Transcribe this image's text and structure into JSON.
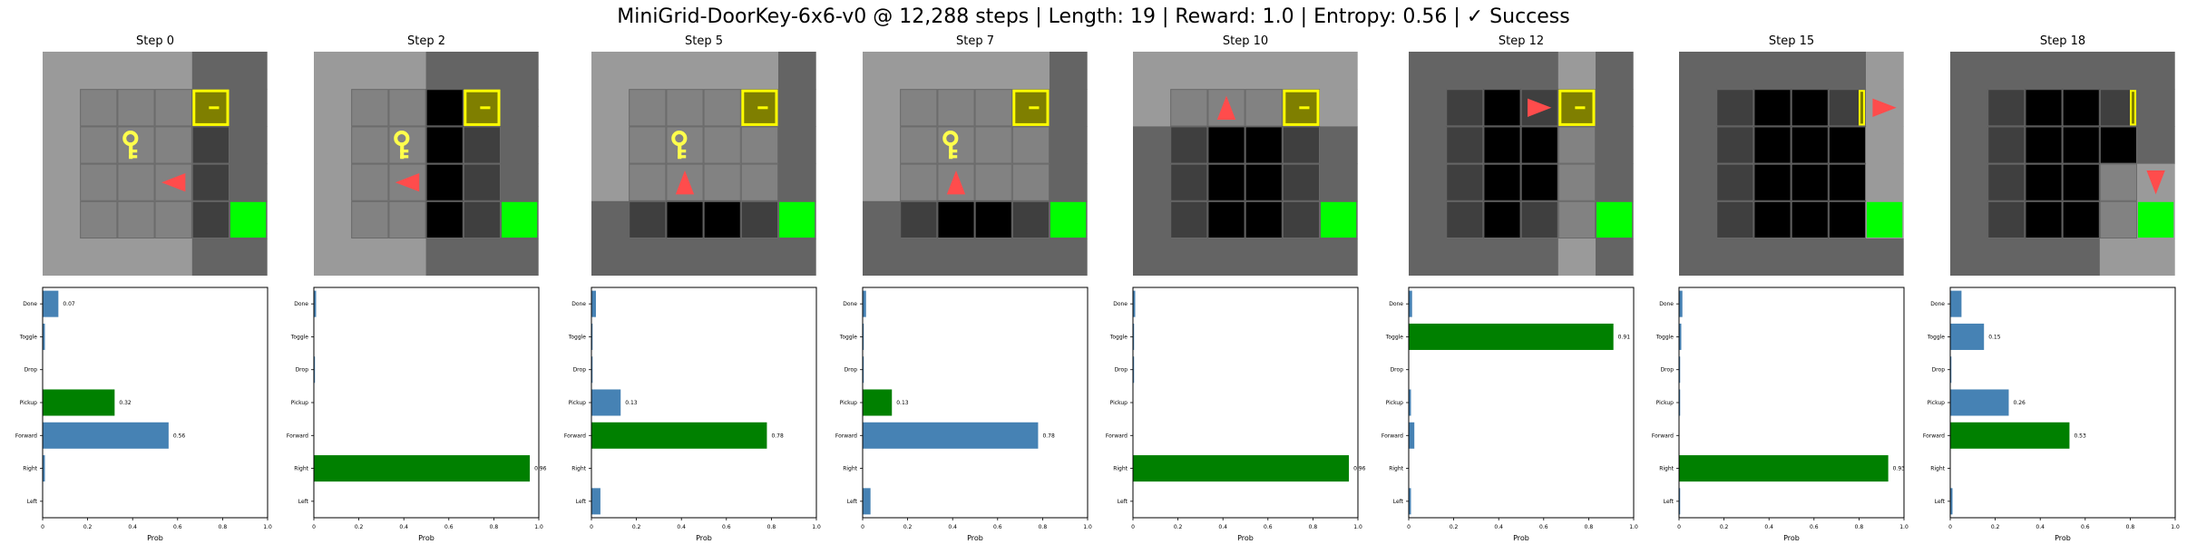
{
  "title": "MiniGrid-DoorKey-6x6-v0 @ 12,288 steps | Length: 19 | Reward: 1.0 | Entropy: 0.56 | ✓ Success",
  "colors": {
    "bar_default": "#4682b4",
    "bar_chosen": "#008000",
    "goal": "#00ff00",
    "door": "#7f7f00",
    "key": "#ffff4c",
    "agent": "#ff4c4c",
    "wall": "#646464",
    "floor": "#3f3f3f",
    "unseen": "#000000"
  },
  "icons": {
    "agent": "triangle-agent-icon",
    "key": "key-icon",
    "door": "locked-door-icon",
    "goal": "goal-square-icon"
  },
  "chart_data": [
    {
      "type": "bar",
      "orientation": "horizontal",
      "title": "Step 0",
      "categories": [
        "Left",
        "Right",
        "Forward",
        "Pickup",
        "Drop",
        "Toggle",
        "Done"
      ],
      "values": [
        0.0,
        0.01,
        0.56,
        0.32,
        0.0,
        0.01,
        0.07
      ],
      "value_labels": {
        "Forward": "0.56",
        "Pickup": "0.32",
        "Done": "0.07"
      },
      "chosen": "Pickup",
      "xlabel": "Prob",
      "xlim": [
        0,
        1
      ],
      "xticks": [
        "0",
        "0.2",
        "0.4",
        "0.6",
        "0.8",
        "1.0"
      ]
    },
    {
      "type": "bar",
      "orientation": "horizontal",
      "title": "Step 2",
      "categories": [
        "Left",
        "Right",
        "Forward",
        "Pickup",
        "Drop",
        "Toggle",
        "Done"
      ],
      "values": [
        0.0,
        0.96,
        0.0,
        0.0,
        0.005,
        0.0,
        0.01
      ],
      "value_labels": {
        "Right": "0.96"
      },
      "chosen": "Right",
      "xlabel": "Prob",
      "xlim": [
        0,
        1
      ],
      "xticks": [
        "0",
        "0.2",
        "0.4",
        "0.6",
        "0.8",
        "1.0"
      ]
    },
    {
      "type": "bar",
      "orientation": "horizontal",
      "title": "Step 5",
      "categories": [
        "Left",
        "Right",
        "Forward",
        "Pickup",
        "Drop",
        "Toggle",
        "Done"
      ],
      "values": [
        0.04,
        0.0,
        0.78,
        0.13,
        0.005,
        0.005,
        0.02
      ],
      "value_labels": {
        "Forward": "0.78",
        "Pickup": "0.13"
      },
      "chosen": "Forward",
      "xlabel": "Prob",
      "xlim": [
        0,
        1
      ],
      "xticks": [
        "0",
        "0.2",
        "0.4",
        "0.6",
        "0.8",
        "1.0"
      ]
    },
    {
      "type": "bar",
      "orientation": "horizontal",
      "title": "Step 7",
      "categories": [
        "Left",
        "Right",
        "Forward",
        "Pickup",
        "Drop",
        "Toggle",
        "Done"
      ],
      "values": [
        0.035,
        0.0,
        0.78,
        0.13,
        0.005,
        0.005,
        0.015
      ],
      "value_labels": {
        "Forward": "0.78",
        "Pickup": "0.13"
      },
      "chosen": "Pickup",
      "xlabel": "Prob",
      "xlim": [
        0,
        1
      ],
      "xticks": [
        "0",
        "0.2",
        "0.4",
        "0.6",
        "0.8",
        "1.0"
      ]
    },
    {
      "type": "bar",
      "orientation": "horizontal",
      "title": "Step 10",
      "categories": [
        "Left",
        "Right",
        "Forward",
        "Pickup",
        "Drop",
        "Toggle",
        "Done"
      ],
      "values": [
        0.0,
        0.96,
        0.0,
        0.0,
        0.005,
        0.005,
        0.01
      ],
      "value_labels": {
        "Right": "0.96"
      },
      "chosen": "Right",
      "xlabel": "Prob",
      "xlim": [
        0,
        1
      ],
      "xticks": [
        "0",
        "0.2",
        "0.4",
        "0.6",
        "0.8",
        "1.0"
      ]
    },
    {
      "type": "bar",
      "orientation": "horizontal",
      "title": "Step 12",
      "categories": [
        "Left",
        "Right",
        "Forward",
        "Pickup",
        "Drop",
        "Toggle",
        "Done"
      ],
      "values": [
        0.01,
        0.0,
        0.025,
        0.01,
        0.0,
        0.91,
        0.015
      ],
      "value_labels": {
        "Toggle": "0.91"
      },
      "chosen": "Toggle",
      "xlabel": "Prob",
      "xlim": [
        0,
        1
      ],
      "xticks": [
        "0",
        "0.2",
        "0.4",
        "0.6",
        "0.8",
        "1.0"
      ]
    },
    {
      "type": "bar",
      "orientation": "horizontal",
      "title": "Step 15",
      "categories": [
        "Left",
        "Right",
        "Forward",
        "Pickup",
        "Drop",
        "Toggle",
        "Done"
      ],
      "values": [
        0.005,
        0.93,
        0.0,
        0.005,
        0.005,
        0.01,
        0.015
      ],
      "value_labels": {
        "Right": "0.93"
      },
      "chosen": "Right",
      "xlabel": "Prob",
      "xlim": [
        0,
        1
      ],
      "xticks": [
        "0",
        "0.2",
        "0.4",
        "0.6",
        "0.8",
        "1.0"
      ]
    },
    {
      "type": "bar",
      "orientation": "horizontal",
      "title": "Step 18",
      "categories": [
        "Left",
        "Right",
        "Forward",
        "Pickup",
        "Drop",
        "Toggle",
        "Done"
      ],
      "values": [
        0.01,
        0.0,
        0.53,
        0.26,
        0.005,
        0.15,
        0.05
      ],
      "value_labels": {
        "Forward": "0.53",
        "Pickup": "0.26",
        "Toggle": "0.15"
      },
      "chosen": "Forward",
      "xlabel": "Prob",
      "xlim": [
        0,
        1
      ],
      "xticks": [
        "0",
        "0.2",
        "0.4",
        "0.6",
        "0.8",
        "1.0"
      ]
    }
  ],
  "grids": [
    {
      "agent": {
        "c": 3,
        "r": 3,
        "dir": "left"
      },
      "key": {
        "c": 2,
        "r": 2
      },
      "door": {
        "c": 4,
        "r": 1,
        "state": "locked"
      },
      "goal": {
        "c": 5,
        "r": 4
      },
      "unseen": [
        [
          5,
          1
        ],
        [
          5,
          2
        ],
        [
          5,
          3
        ]
      ],
      "light": "none",
      "vis": [
        [
          0,
          0
        ],
        [
          0,
          1
        ],
        [
          0,
          2
        ],
        [
          0,
          3
        ],
        [
          0,
          4
        ],
        [
          0,
          5
        ],
        [
          1,
          0
        ],
        [
          1,
          1
        ],
        [
          1,
          2
        ],
        [
          1,
          3
        ],
        [
          1,
          4
        ],
        [
          1,
          5
        ],
        [
          2,
          0
        ],
        [
          2,
          1
        ],
        [
          2,
          2
        ],
        [
          2,
          3
        ],
        [
          2,
          4
        ],
        [
          2,
          5
        ],
        [
          3,
          0
        ],
        [
          3,
          1
        ],
        [
          3,
          2
        ],
        [
          3,
          3
        ],
        [
          3,
          4
        ],
        [
          3,
          5
        ]
      ]
    },
    {
      "agent": {
        "c": 2,
        "r": 3,
        "dir": "left"
      },
      "key": {
        "c": 2,
        "r": 2
      },
      "door": {
        "c": 4,
        "r": 1,
        "state": "locked"
      },
      "goal": {
        "c": 5,
        "r": 4
      },
      "unseen": [
        [
          3,
          1
        ],
        [
          3,
          2
        ],
        [
          3,
          3
        ],
        [
          3,
          4
        ],
        [
          5,
          1
        ],
        [
          5,
          2
        ],
        [
          5,
          3
        ]
      ],
      "vis": [
        [
          0,
          0
        ],
        [
          0,
          1
        ],
        [
          0,
          2
        ],
        [
          0,
          3
        ],
        [
          0,
          4
        ],
        [
          0,
          5
        ],
        [
          1,
          0
        ],
        [
          1,
          1
        ],
        [
          1,
          2
        ],
        [
          1,
          3
        ],
        [
          1,
          4
        ],
        [
          1,
          5
        ],
        [
          2,
          0
        ],
        [
          2,
          1
        ],
        [
          2,
          2
        ],
        [
          2,
          3
        ],
        [
          2,
          4
        ],
        [
          2,
          5
        ]
      ]
    },
    {
      "agent": {
        "c": 2,
        "r": 3,
        "dir": "up"
      },
      "key": {
        "c": 2,
        "r": 2
      },
      "door": {
        "c": 4,
        "r": 1,
        "state": "locked"
      },
      "goal": {
        "c": 5,
        "r": 4
      },
      "unseen": [
        [
          2,
          4
        ],
        [
          3,
          4
        ],
        [
          5,
          1
        ],
        [
          5,
          2
        ],
        [
          5,
          3
        ]
      ],
      "vis": [
        [
          0,
          0
        ],
        [
          1,
          0
        ],
        [
          2,
          0
        ],
        [
          3,
          0
        ],
        [
          4,
          0
        ],
        [
          0,
          1
        ],
        [
          1,
          1
        ],
        [
          2,
          1
        ],
        [
          3,
          1
        ],
        [
          4,
          1
        ],
        [
          0,
          2
        ],
        [
          1,
          2
        ],
        [
          2,
          2
        ],
        [
          3,
          2
        ],
        [
          4,
          2
        ],
        [
          0,
          3
        ],
        [
          1,
          3
        ],
        [
          2,
          3
        ],
        [
          3,
          3
        ],
        [
          4,
          3
        ]
      ]
    },
    {
      "agent": {
        "c": 2,
        "r": 3,
        "dir": "up"
      },
      "key": {
        "c": 2,
        "r": 2
      },
      "door": {
        "c": 4,
        "r": 1,
        "state": "locked"
      },
      "goal": {
        "c": 5,
        "r": 4
      },
      "unseen": [
        [
          2,
          4
        ],
        [
          3,
          4
        ],
        [
          5,
          1
        ],
        [
          5,
          2
        ],
        [
          5,
          3
        ]
      ],
      "vis": [
        [
          0,
          0
        ],
        [
          1,
          0
        ],
        [
          2,
          0
        ],
        [
          3,
          0
        ],
        [
          4,
          0
        ],
        [
          0,
          1
        ],
        [
          1,
          1
        ],
        [
          2,
          1
        ],
        [
          3,
          1
        ],
        [
          4,
          1
        ],
        [
          0,
          2
        ],
        [
          1,
          2
        ],
        [
          2,
          2
        ],
        [
          3,
          2
        ],
        [
          4,
          2
        ],
        [
          0,
          3
        ],
        [
          1,
          3
        ],
        [
          2,
          3
        ],
        [
          3,
          3
        ],
        [
          4,
          3
        ]
      ]
    },
    {
      "agent": {
        "c": 2,
        "r": 1,
        "dir": "up"
      },
      "key": null,
      "door": {
        "c": 4,
        "r": 1,
        "state": "locked"
      },
      "goal": {
        "c": 5,
        "r": 4
      },
      "unseen": [
        [
          2,
          2
        ],
        [
          2,
          3
        ],
        [
          2,
          4
        ],
        [
          3,
          2
        ],
        [
          3,
          3
        ],
        [
          3,
          4
        ],
        [
          5,
          1
        ],
        [
          5,
          2
        ],
        [
          5,
          3
        ]
      ],
      "vis": [
        [
          0,
          0
        ],
        [
          1,
          0
        ],
        [
          2,
          0
        ],
        [
          3,
          0
        ],
        [
          4,
          0
        ],
        [
          5,
          0
        ],
        [
          0,
          1
        ],
        [
          1,
          1
        ],
        [
          2,
          1
        ],
        [
          3,
          1
        ],
        [
          4,
          1
        ],
        [
          5,
          1
        ]
      ]
    },
    {
      "agent": {
        "c": 3,
        "r": 1,
        "dir": "right"
      },
      "key": null,
      "door": {
        "c": 4,
        "r": 1,
        "state": "locked"
      },
      "goal": {
        "c": 5,
        "r": 4
      },
      "unseen": [
        [
          2,
          1
        ],
        [
          2,
          2
        ],
        [
          2,
          3
        ],
        [
          2,
          4
        ],
        [
          3,
          2
        ],
        [
          3,
          3
        ],
        [
          5,
          1
        ],
        [
          5,
          2
        ],
        [
          5,
          3
        ]
      ],
      "vis": [
        [
          4,
          0
        ],
        [
          4,
          1
        ],
        [
          4,
          2
        ],
        [
          4,
          3
        ],
        [
          4,
          4
        ],
        [
          4,
          5
        ]
      ]
    },
    {
      "agent": {
        "c": 5,
        "r": 1,
        "dir": "right"
      },
      "key": null,
      "door": {
        "c": 4,
        "r": 1,
        "state": "open"
      },
      "goal": {
        "c": 5,
        "r": 4
      },
      "unseen": [
        [
          2,
          1
        ],
        [
          2,
          2
        ],
        [
          2,
          3
        ],
        [
          2,
          4
        ],
        [
          3,
          1
        ],
        [
          3,
          2
        ],
        [
          3,
          3
        ],
        [
          3,
          4
        ],
        [
          4,
          2
        ],
        [
          4,
          3
        ],
        [
          4,
          4
        ]
      ],
      "vis": [
        [
          5,
          0
        ],
        [
          5,
          1
        ],
        [
          5,
          2
        ],
        [
          5,
          3
        ],
        [
          5,
          4
        ],
        [
          6,
          0
        ],
        [
          6,
          1
        ],
        [
          6,
          2
        ],
        [
          6,
          3
        ],
        [
          6,
          4
        ]
      ]
    },
    {
      "agent": {
        "c": 5,
        "r": 3,
        "dir": "down"
      },
      "key": null,
      "door": {
        "c": 4,
        "r": 1,
        "state": "open"
      },
      "goal": {
        "c": 5,
        "r": 4
      },
      "unseen": [
        [
          2,
          1
        ],
        [
          2,
          2
        ],
        [
          2,
          3
        ],
        [
          2,
          4
        ],
        [
          3,
          1
        ],
        [
          3,
          2
        ],
        [
          3,
          3
        ],
        [
          3,
          4
        ],
        [
          4,
          2
        ],
        [
          4,
          3
        ],
        [
          4,
          4
        ],
        [
          5,
          2
        ]
      ],
      "vis": [
        [
          4,
          4
        ],
        [
          5,
          4
        ],
        [
          6,
          4
        ],
        [
          4,
          5
        ],
        [
          5,
          5
        ],
        [
          6,
          5
        ],
        [
          4,
          3
        ],
        [
          5,
          3
        ],
        [
          6,
          3
        ]
      ]
    }
  ]
}
